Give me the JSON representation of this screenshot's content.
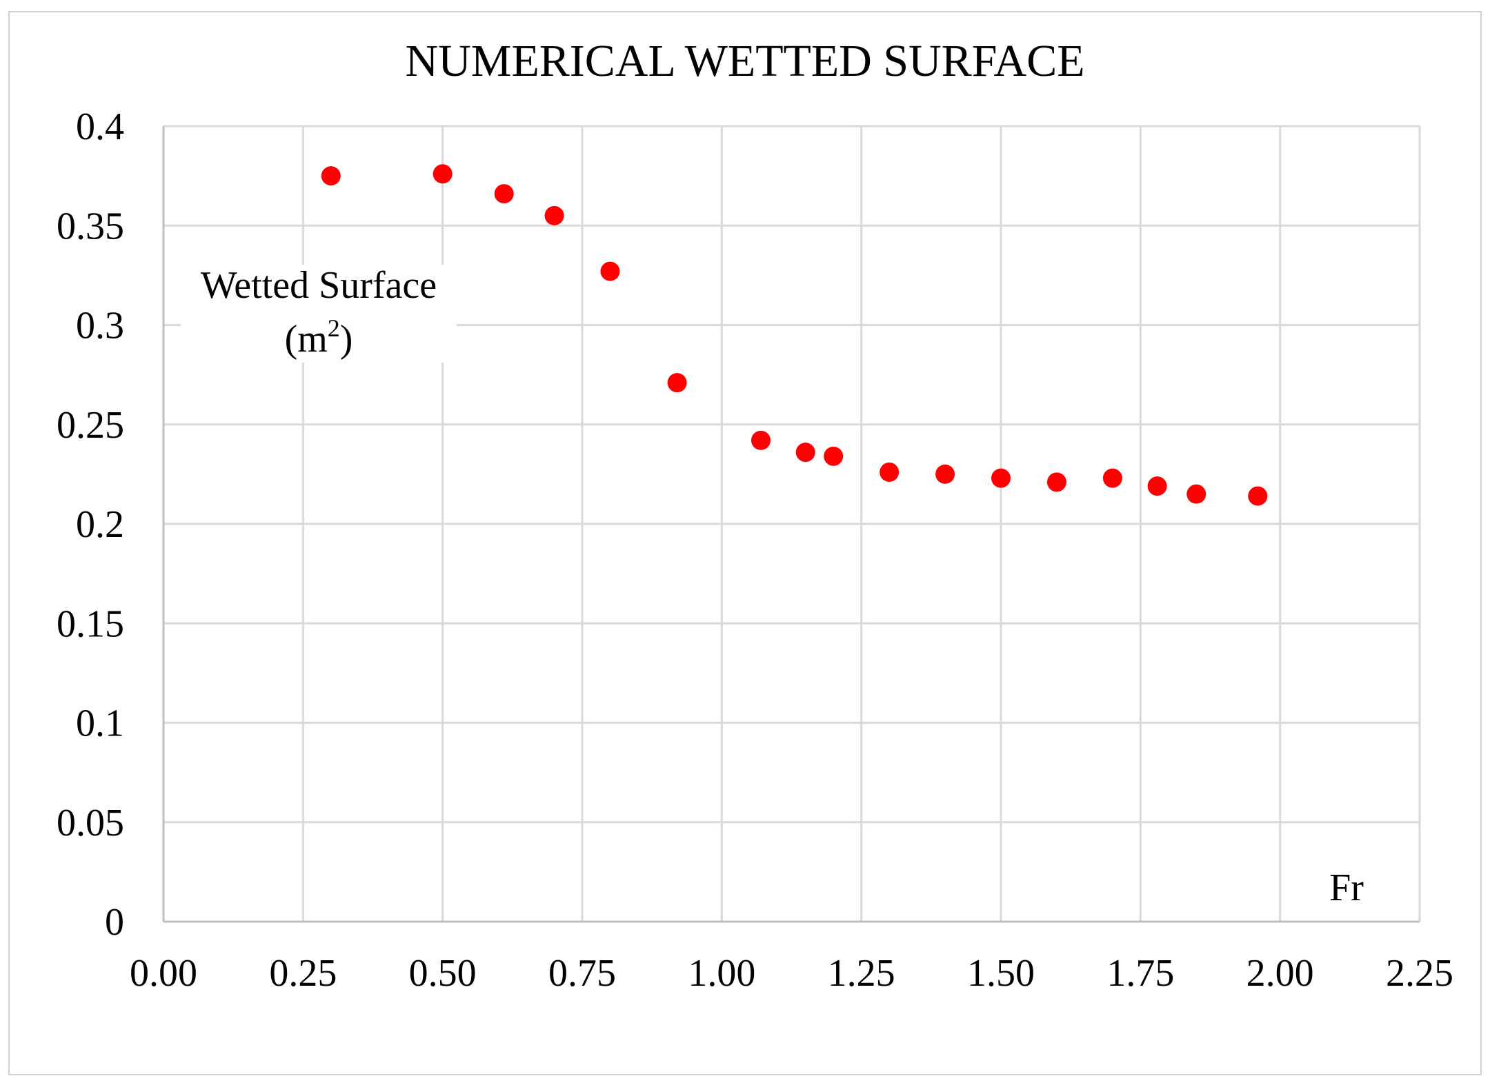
{
  "chart_data": {
    "type": "scatter",
    "title": "NUMERICAL WETTED SURFACE",
    "xlabel": "Fr",
    "ylabel": "Wetted Surface",
    "ylabel_unit": "(m",
    "ylabel_unit_sup": "2",
    "ylabel_unit_close": ")",
    "xlim": [
      0,
      2.25
    ],
    "ylim": [
      0,
      0.4
    ],
    "x_ticks": [
      "0.00",
      "0.25",
      "0.50",
      "0.75",
      "1.00",
      "1.25",
      "1.50",
      "1.75",
      "2.00",
      "2.25"
    ],
    "y_ticks": [
      "0",
      "0.05",
      "0.1",
      "0.15",
      "0.2",
      "0.25",
      "0.3",
      "0.35",
      "0.4"
    ],
    "grid": true,
    "marker_color": "#ff0000",
    "series": [
      {
        "name": "Wetted Surface",
        "x": [
          0.3,
          0.5,
          0.61,
          0.7,
          0.8,
          0.92,
          1.07,
          1.15,
          1.2,
          1.3,
          1.4,
          1.5,
          1.6,
          1.7,
          1.78,
          1.85,
          1.96
        ],
        "y": [
          0.375,
          0.376,
          0.366,
          0.355,
          0.327,
          0.271,
          0.242,
          0.236,
          0.234,
          0.226,
          0.225,
          0.223,
          0.221,
          0.223,
          0.219,
          0.215,
          0.214
        ]
      }
    ]
  }
}
